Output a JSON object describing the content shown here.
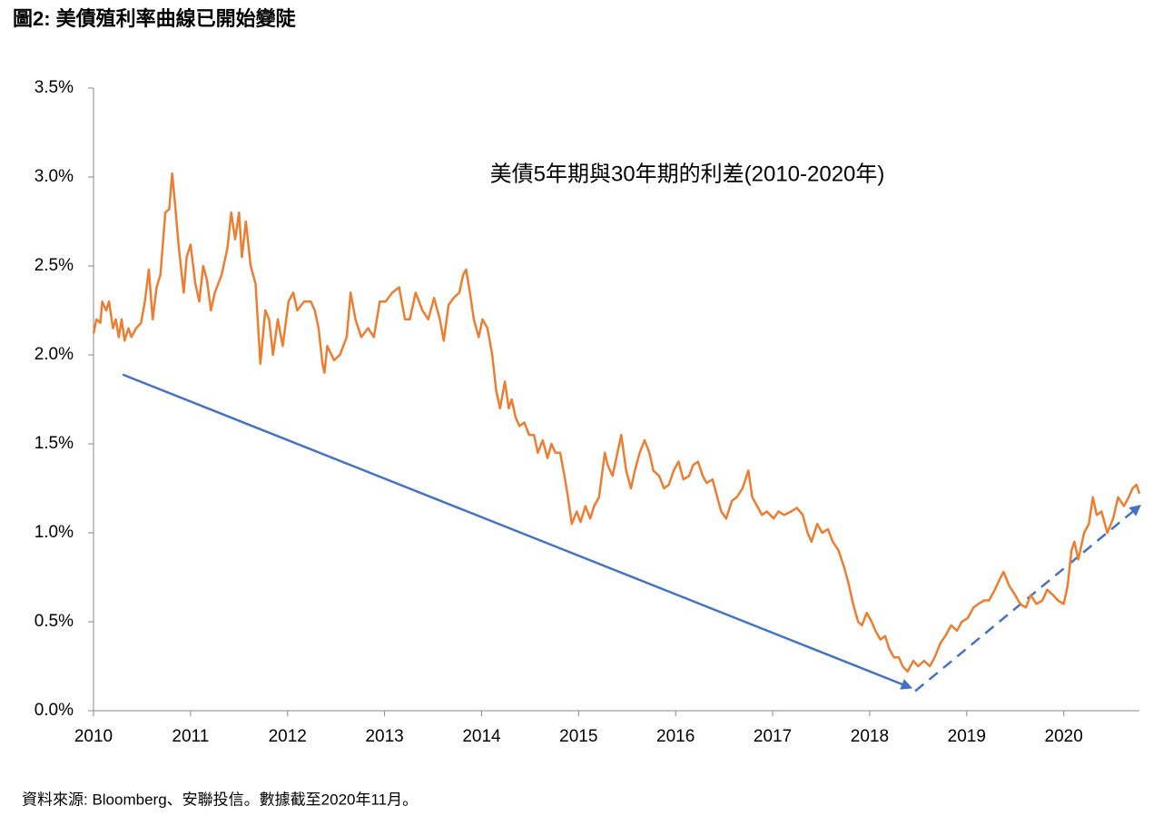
{
  "title": "圖2: 美債殖利率曲線已開始變陡",
  "source": "資料來源: Bloomberg、安聯投信。數據截至2020年11月。",
  "chart_data": {
    "type": "line",
    "annotation": "美債5年期與30年期的利差(2010-2020年)",
    "xlim": [
      2010,
      2020.78
    ],
    "xticks": [
      2010,
      2011,
      2012,
      2013,
      2014,
      2015,
      2016,
      2017,
      2018,
      2019,
      2020
    ],
    "ylim": [
      0,
      3.5
    ],
    "yticks": [
      {
        "value": 0,
        "label": "0.0%"
      },
      {
        "value": 0.5,
        "label": "0.5%"
      },
      {
        "value": 1,
        "label": "1.0%"
      },
      {
        "value": 1.5,
        "label": "1.5%"
      },
      {
        "value": 2,
        "label": "2.0%"
      },
      {
        "value": 2.5,
        "label": "2.5%"
      },
      {
        "value": 3,
        "label": "3.0%"
      },
      {
        "value": 3.5,
        "label": "3.5%"
      }
    ],
    "grid": false,
    "series": [
      {
        "color": "#ed7d31",
        "x": [
          2010.0,
          2010.03,
          2010.07,
          2010.09,
          2010.13,
          2010.16,
          2010.2,
          2010.23,
          2010.26,
          2010.29,
          2010.32,
          2010.36,
          2010.39,
          2010.44,
          2010.49,
          2010.53,
          2010.57,
          2010.61,
          2010.65,
          2010.69,
          2010.74,
          2010.78,
          2010.81,
          2010.84,
          2010.88,
          2010.93,
          2010.96,
          2011.0,
          2011.05,
          2011.09,
          2011.13,
          2011.17,
          2011.21,
          2011.25,
          2011.32,
          2011.38,
          2011.42,
          2011.46,
          2011.5,
          2011.53,
          2011.57,
          2011.62,
          2011.67,
          2011.72,
          2011.77,
          2011.81,
          2011.85,
          2011.9,
          2011.95,
          2012.01,
          2012.06,
          2012.1,
          2012.17,
          2012.24,
          2012.28,
          2012.32,
          2012.36,
          2012.38,
          2012.41,
          2012.48,
          2012.54,
          2012.61,
          2012.65,
          2012.7,
          2012.76,
          2012.83,
          2012.89,
          2012.95,
          2013.01,
          2013.08,
          2013.15,
          2013.21,
          2013.26,
          2013.32,
          2013.39,
          2013.45,
          2013.51,
          2013.57,
          2013.61,
          2013.66,
          2013.71,
          2013.77,
          2013.81,
          2013.84,
          2013.88,
          2013.92,
          2013.97,
          2014.01,
          2014.06,
          2014.11,
          2014.15,
          2014.19,
          2014.24,
          2014.28,
          2014.31,
          2014.35,
          2014.39,
          2014.44,
          2014.49,
          2014.54,
          2014.58,
          2014.63,
          2014.68,
          2014.72,
          2014.76,
          2014.81,
          2014.86,
          2014.89,
          2014.93,
          2014.98,
          2015.02,
          2015.07,
          2015.12,
          2015.16,
          2015.21,
          2015.27,
          2015.3,
          2015.35,
          2015.4,
          2015.44,
          2015.49,
          2015.54,
          2015.58,
          2015.63,
          2015.68,
          2015.73,
          2015.77,
          2015.83,
          2015.88,
          2015.93,
          2015.98,
          2016.03,
          2016.08,
          2016.14,
          2016.18,
          2016.23,
          2016.28,
          2016.32,
          2016.38,
          2016.43,
          2016.47,
          2016.52,
          2016.58,
          2016.63,
          2016.69,
          2016.75,
          2016.79,
          2016.84,
          2016.89,
          2016.94,
          2017.01,
          2017.06,
          2017.12,
          2017.19,
          2017.25,
          2017.31,
          2017.36,
          2017.4,
          2017.46,
          2017.51,
          2017.57,
          2017.62,
          2017.68,
          2017.74,
          2017.78,
          2017.83,
          2017.88,
          2017.92,
          2017.97,
          2018.02,
          2018.06,
          2018.11,
          2018.16,
          2018.2,
          2018.25,
          2018.3,
          2018.34,
          2018.39,
          2018.45,
          2018.5,
          2018.56,
          2018.62,
          2018.67,
          2018.73,
          2018.78,
          2018.84,
          2018.9,
          2018.95,
          2019.01,
          2019.07,
          2019.12,
          2019.18,
          2019.23,
          2019.29,
          2019.35,
          2019.38,
          2019.44,
          2019.5,
          2019.55,
          2019.61,
          2019.66,
          2019.72,
          2019.78,
          2019.83,
          2019.89,
          2019.94,
          2020.0,
          2020.04,
          2020.08,
          2020.11,
          2020.15,
          2020.21,
          2020.26,
          2020.3,
          2020.34,
          2020.39,
          2020.45,
          2020.51,
          2020.56,
          2020.62,
          2020.67,
          2020.71,
          2020.75,
          2020.78
        ],
        "values": [
          2.12,
          2.2,
          2.18,
          2.3,
          2.25,
          2.3,
          2.15,
          2.2,
          2.1,
          2.2,
          2.08,
          2.15,
          2.1,
          2.15,
          2.18,
          2.3,
          2.48,
          2.2,
          2.38,
          2.45,
          2.8,
          2.82,
          3.02,
          2.85,
          2.6,
          2.35,
          2.55,
          2.62,
          2.4,
          2.3,
          2.5,
          2.42,
          2.25,
          2.35,
          2.45,
          2.6,
          2.8,
          2.65,
          2.8,
          2.55,
          2.75,
          2.5,
          2.4,
          1.95,
          2.25,
          2.2,
          2.0,
          2.2,
          2.05,
          2.3,
          2.35,
          2.25,
          2.3,
          2.3,
          2.25,
          2.15,
          1.95,
          1.9,
          2.05,
          1.97,
          2.0,
          2.1,
          2.35,
          2.2,
          2.1,
          2.15,
          2.1,
          2.3,
          2.3,
          2.35,
          2.38,
          2.2,
          2.2,
          2.35,
          2.25,
          2.2,
          2.32,
          2.2,
          2.08,
          2.28,
          2.32,
          2.35,
          2.45,
          2.48,
          2.35,
          2.2,
          2.1,
          2.2,
          2.15,
          2.0,
          1.8,
          1.7,
          1.85,
          1.7,
          1.75,
          1.65,
          1.6,
          1.62,
          1.55,
          1.55,
          1.45,
          1.52,
          1.42,
          1.5,
          1.45,
          1.45,
          1.3,
          1.2,
          1.05,
          1.12,
          1.06,
          1.15,
          1.08,
          1.15,
          1.2,
          1.45,
          1.38,
          1.32,
          1.45,
          1.55,
          1.35,
          1.25,
          1.35,
          1.45,
          1.52,
          1.45,
          1.35,
          1.32,
          1.25,
          1.27,
          1.35,
          1.4,
          1.3,
          1.32,
          1.38,
          1.4,
          1.32,
          1.28,
          1.3,
          1.2,
          1.12,
          1.08,
          1.18,
          1.2,
          1.25,
          1.35,
          1.2,
          1.15,
          1.1,
          1.12,
          1.08,
          1.12,
          1.1,
          1.12,
          1.14,
          1.1,
          1.0,
          0.95,
          1.05,
          1.0,
          1.02,
          0.95,
          0.9,
          0.8,
          0.72,
          0.6,
          0.5,
          0.48,
          0.55,
          0.5,
          0.45,
          0.4,
          0.42,
          0.35,
          0.3,
          0.3,
          0.25,
          0.22,
          0.28,
          0.25,
          0.28,
          0.25,
          0.3,
          0.38,
          0.42,
          0.48,
          0.45,
          0.5,
          0.52,
          0.58,
          0.6,
          0.62,
          0.62,
          0.68,
          0.75,
          0.78,
          0.7,
          0.65,
          0.6,
          0.58,
          0.65,
          0.6,
          0.62,
          0.68,
          0.65,
          0.62,
          0.6,
          0.7,
          0.9,
          0.95,
          0.85,
          1.0,
          1.05,
          1.2,
          1.1,
          1.12,
          1.0,
          1.08,
          1.2,
          1.15,
          1.2,
          1.25,
          1.27,
          1.22
        ]
      }
    ],
    "arrows": [
      {
        "color": "#4472c4",
        "dashed": false,
        "x": [
          2010.3,
          2018.42
        ],
        "y": [
          1.89,
          0.13
        ]
      },
      {
        "color": "#4472c4",
        "dashed": true,
        "x": [
          2018.47,
          2020.78
        ],
        "y": [
          0.11,
          1.15
        ]
      }
    ]
  }
}
